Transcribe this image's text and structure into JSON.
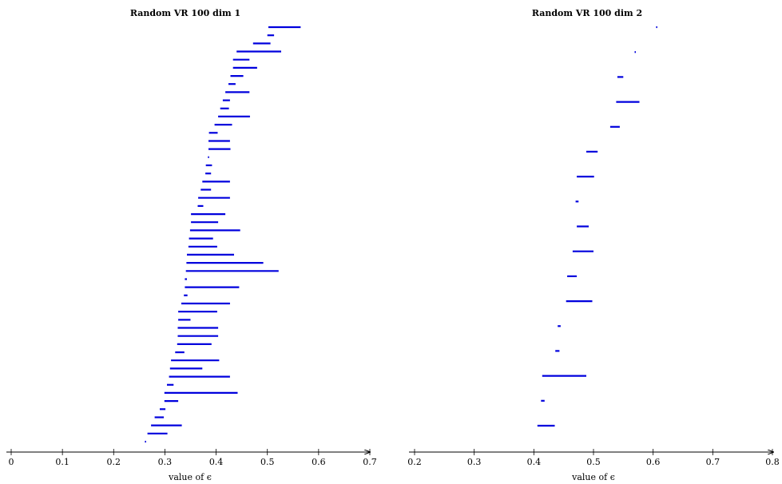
{
  "chart_data": [
    {
      "type": "barcode",
      "title": "Random VR 100 dim 1",
      "xlabel": "value of ϵ",
      "xlim": [
        0,
        0.7
      ],
      "xticks": [
        "0",
        "0.1",
        "0.2",
        "0.3",
        "0.4",
        "0.5",
        "0.6",
        "0.7"
      ],
      "bar_color": "#0000dd",
      "bars": [
        [
          0.502,
          0.565
        ],
        [
          0.5,
          0.513
        ],
        [
          0.472,
          0.506
        ],
        [
          0.44,
          0.527
        ],
        [
          0.433,
          0.465
        ],
        [
          0.433,
          0.48
        ],
        [
          0.428,
          0.453
        ],
        [
          0.424,
          0.438
        ],
        [
          0.418,
          0.465
        ],
        [
          0.413,
          0.427
        ],
        [
          0.408,
          0.425
        ],
        [
          0.404,
          0.466
        ],
        [
          0.397,
          0.431
        ],
        [
          0.386,
          0.403
        ],
        [
          0.385,
          0.427
        ],
        [
          0.385,
          0.428
        ],
        [
          0.384,
          0.386
        ],
        [
          0.38,
          0.392
        ],
        [
          0.379,
          0.39
        ],
        [
          0.373,
          0.427
        ],
        [
          0.37,
          0.39
        ],
        [
          0.365,
          0.427
        ],
        [
          0.364,
          0.375
        ],
        [
          0.351,
          0.418
        ],
        [
          0.351,
          0.404
        ],
        [
          0.349,
          0.447
        ],
        [
          0.347,
          0.394
        ],
        [
          0.346,
          0.402
        ],
        [
          0.343,
          0.435
        ],
        [
          0.342,
          0.492
        ],
        [
          0.341,
          0.522
        ],
        [
          0.339,
          0.343
        ],
        [
          0.339,
          0.445
        ],
        [
          0.337,
          0.344
        ],
        [
          0.332,
          0.427
        ],
        [
          0.326,
          0.402
        ],
        [
          0.326,
          0.35
        ],
        [
          0.325,
          0.404
        ],
        [
          0.325,
          0.404
        ],
        [
          0.324,
          0.391
        ],
        [
          0.32,
          0.338
        ],
        [
          0.312,
          0.406
        ],
        [
          0.31,
          0.373
        ],
        [
          0.308,
          0.427
        ],
        [
          0.304,
          0.317
        ],
        [
          0.299,
          0.442
        ],
        [
          0.299,
          0.326
        ],
        [
          0.29,
          0.301
        ],
        [
          0.28,
          0.298
        ],
        [
          0.273,
          0.333
        ],
        [
          0.266,
          0.305
        ],
        [
          0.261,
          0.263
        ]
      ]
    },
    {
      "type": "barcode",
      "title": "Random VR 100 dim 2",
      "xlabel": "value of ϵ",
      "xlim": [
        0.2,
        0.8
      ],
      "xticks": [
        "0.2",
        "0.3",
        "0.4",
        "0.5",
        "0.6",
        "0.7",
        "0.8"
      ],
      "bar_color": "#0000dd",
      "bars": [
        [
          0.605,
          0.607
        ],
        [
          0.569,
          0.571
        ],
        [
          0.54,
          0.55
        ],
        [
          0.538,
          0.577
        ],
        [
          0.528,
          0.544
        ],
        [
          0.488,
          0.507
        ],
        [
          0.472,
          0.501
        ],
        [
          0.47,
          0.475
        ],
        [
          0.472,
          0.492
        ],
        [
          0.465,
          0.5
        ],
        [
          0.456,
          0.472
        ],
        [
          0.454,
          0.498
        ],
        [
          0.44,
          0.445
        ],
        [
          0.436,
          0.443
        ],
        [
          0.414,
          0.488
        ],
        [
          0.412,
          0.418
        ],
        [
          0.406,
          0.435
        ]
      ]
    }
  ]
}
